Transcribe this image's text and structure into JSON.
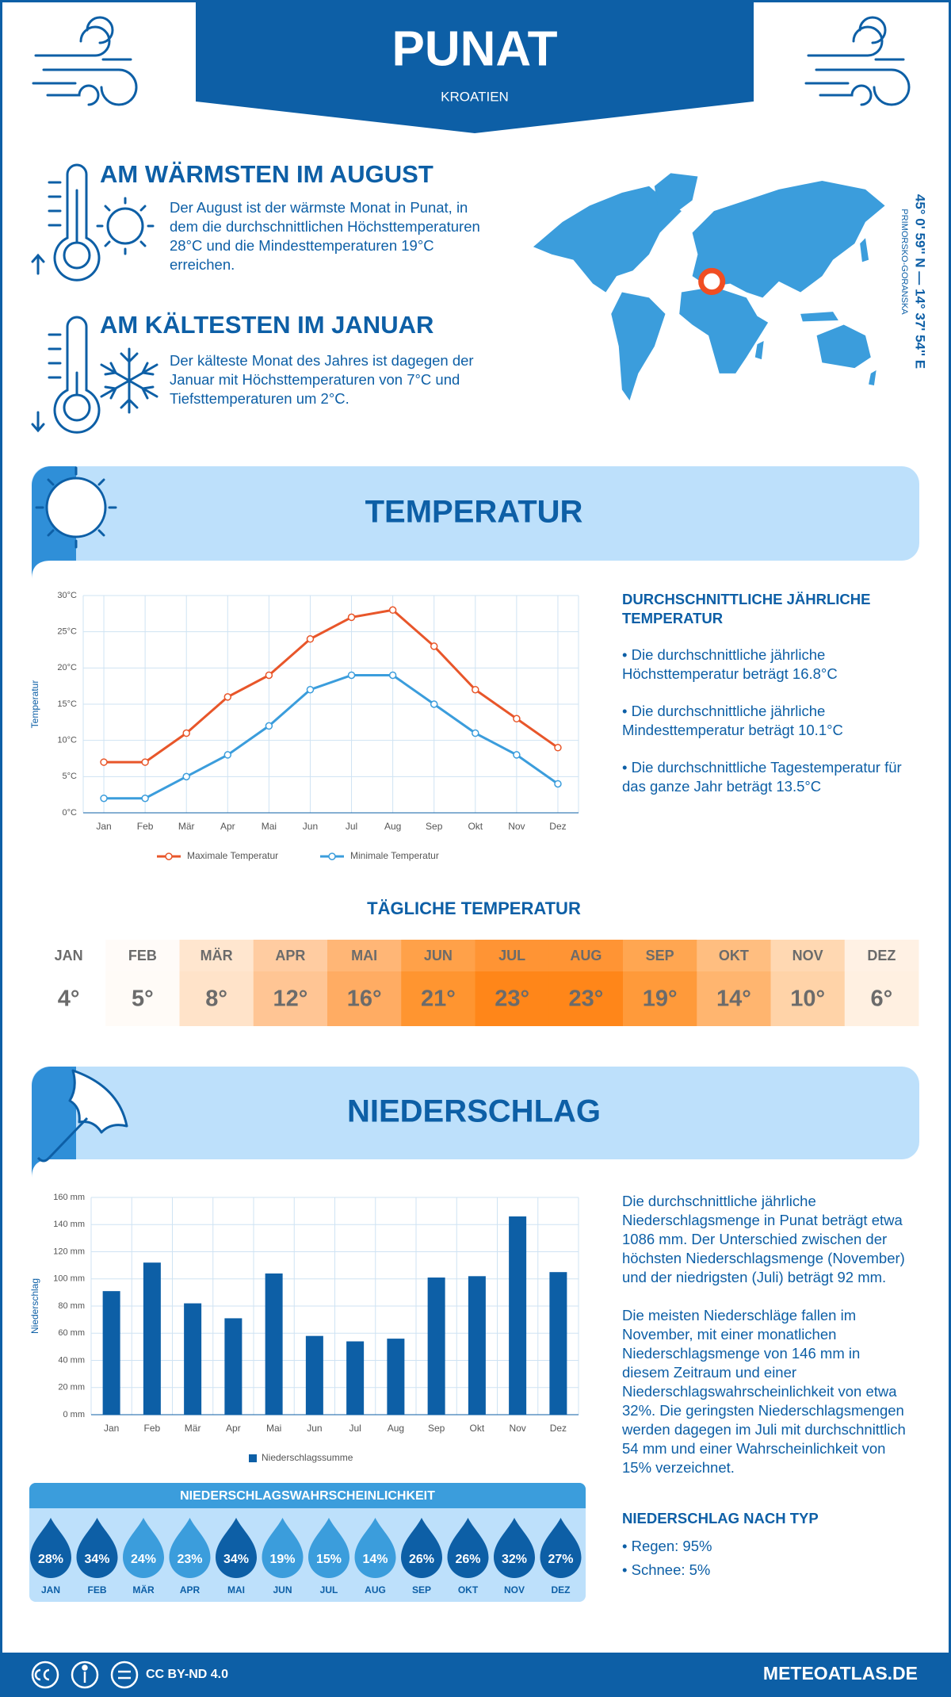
{
  "header": {
    "title": "PUNAT",
    "subtitle": "KROATIEN"
  },
  "highlights": [
    {
      "title": "AM WÄRMSTEN IM AUGUST",
      "text": "Der August ist der wärmste Monat in Punat, in dem die durchschnittlichen Höchsttemperaturen 28°C und die Mindesttemperaturen 19°C erreichen."
    },
    {
      "title": "AM KÄLTESTEN IM JANUAR",
      "text": "Der kälteste Monat des Jahres ist dagegen der Januar mit Höchsttemperaturen von 7°C und Tiefsttemperaturen um 2°C."
    }
  ],
  "location": {
    "coordinates": "45° 0' 59'' N — 14° 37' 54'' E",
    "region": "PRIMORSKO-GORANSKA"
  },
  "temperature_section": {
    "title": "TEMPERATUR",
    "summary_title": "DURCHSCHNITTLICHE JÄHRLICHE TEMPERATUR",
    "bullets": [
      "• Die durchschnittliche jährliche Höchsttemperatur beträgt 16.8°C",
      "• Die durchschnittliche jährliche Mindesttemperatur beträgt 10.1°C",
      "• Die durchschnittliche Tagestemperatur für das ganze Jahr beträgt 13.5°C"
    ]
  },
  "chart_data": [
    {
      "type": "line",
      "y_label": "Temperatur",
      "categories": [
        "Jan",
        "Feb",
        "Mär",
        "Apr",
        "Mai",
        "Jun",
        "Jul",
        "Aug",
        "Sep",
        "Okt",
        "Nov",
        "Dez"
      ],
      "series": [
        {
          "name": "Maximale Temperatur",
          "color": "#e8562a",
          "values": [
            7,
            7,
            11,
            16,
            19,
            24,
            27,
            28,
            23,
            17,
            13,
            9
          ]
        },
        {
          "name": "Minimale Temperatur",
          "color": "#3b9ddc",
          "values": [
            2,
            2,
            5,
            8,
            12,
            17,
            19,
            19,
            15,
            11,
            8,
            4
          ]
        }
      ],
      "ylim": [
        0,
        30
      ],
      "yticks": [
        {
          "value": 0,
          "label": "0°C"
        },
        {
          "value": 5,
          "label": "5°C"
        },
        {
          "value": 10,
          "label": "10°C"
        },
        {
          "value": 15,
          "label": "15°C"
        },
        {
          "value": 20,
          "label": "20°C"
        },
        {
          "value": 25,
          "label": "25°C"
        },
        {
          "value": 30,
          "label": "30°C"
        }
      ],
      "grid": true
    },
    {
      "type": "bar",
      "y_label": "Niederschlag",
      "categories": [
        "Jan",
        "Feb",
        "Mär",
        "Apr",
        "Mai",
        "Jun",
        "Jul",
        "Aug",
        "Sep",
        "Okt",
        "Nov",
        "Dez"
      ],
      "series": [
        {
          "name": "Niederschlagssumme",
          "color": "#0d5fa6",
          "values": [
            91,
            112,
            82,
            71,
            104,
            58,
            54,
            56,
            101,
            102,
            146,
            105
          ]
        }
      ],
      "ylim": [
        0,
        160
      ],
      "yticks": [
        {
          "value": 0,
          "label": "0 mm"
        },
        {
          "value": 20,
          "label": "20 mm"
        },
        {
          "value": 40,
          "label": "40 mm"
        },
        {
          "value": 60,
          "label": "60 mm"
        },
        {
          "value": 80,
          "label": "80 mm"
        },
        {
          "value": 100,
          "label": "100 mm"
        },
        {
          "value": 120,
          "label": "120 mm"
        },
        {
          "value": 140,
          "label": "140 mm"
        },
        {
          "value": 160,
          "label": "160 mm"
        }
      ],
      "grid": true
    }
  ],
  "daily_temperature": {
    "title": "TÄGLICHE TEMPERATUR",
    "months": [
      "JAN",
      "FEB",
      "MÄR",
      "APR",
      "MAI",
      "JUN",
      "JUL",
      "AUG",
      "SEP",
      "OKT",
      "NOV",
      "DEZ"
    ],
    "values": [
      "4°",
      "5°",
      "8°",
      "12°",
      "16°",
      "21°",
      "23°",
      "23°",
      "19°",
      "14°",
      "10°",
      "6°"
    ],
    "colors": [
      "#ffffff",
      "#fffbf7",
      "#ffe3c9",
      "#ffc594",
      "#ffac63",
      "#ff9530",
      "#ff8619",
      "#ff8619",
      "#ff9a3a",
      "#ffb56f",
      "#ffd3a8",
      "#fff0e1"
    ]
  },
  "precipitation_section": {
    "title": "NIEDERSCHLAG",
    "paragraphs": [
      "Die durchschnittliche jährliche Niederschlagsmenge in Punat beträgt etwa 1086 mm. Der Unterschied zwischen der höchsten Niederschlagsmenge (November) und der niedrigsten (Juli) beträgt 92 mm.",
      "Die meisten Niederschläge fallen im November, mit einer monatlichen Niederschlagsmenge von 146 mm in diesem Zeitraum und einer Niederschlagswahrscheinlichkeit von etwa 32%. Die geringsten Niederschlagsmengen werden dagegen im Juli mit durchschnittlich 54 mm und einer Wahrscheinlichkeit von 15% verzeichnet."
    ],
    "type_title": "NIEDERSCHLAG NACH TYP",
    "types": [
      "• Regen: 95%",
      "• Schnee: 5%"
    ]
  },
  "precipitation_probability": {
    "title": "NIEDERSCHLAGSWAHRSCHEINLICHKEIT",
    "months": [
      "JAN",
      "FEB",
      "MÄR",
      "APR",
      "MAI",
      "JUN",
      "JUL",
      "AUG",
      "SEP",
      "OKT",
      "NOV",
      "DEZ"
    ],
    "values": [
      "28%",
      "34%",
      "24%",
      "23%",
      "34%",
      "19%",
      "15%",
      "14%",
      "26%",
      "26%",
      "32%",
      "27%"
    ],
    "colors": [
      "#0d5fa6",
      "#0d5fa6",
      "#3b9ddc",
      "#3b9ddc",
      "#0d5fa6",
      "#3b9ddc",
      "#3b9ddc",
      "#3b9ddc",
      "#0d5fa6",
      "#0d5fa6",
      "#0d5fa6",
      "#0d5fa6"
    ]
  },
  "footer": {
    "license": "CC BY-ND 4.0",
    "site": "METEOATLAS.DE"
  }
}
